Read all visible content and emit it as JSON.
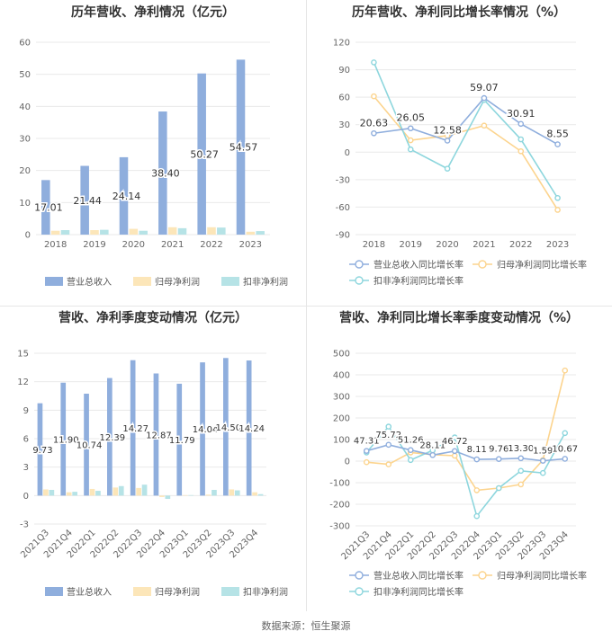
{
  "source_label": "数据来源：恒生聚源",
  "colors": {
    "revenue_bar": "#8FAEDD",
    "net_profit_bar": "#FCE6B9",
    "deducted_profit_bar": "#B6E3E6",
    "revenue_line": "#8FAEDD",
    "net_profit_line": "#FCD48E",
    "deducted_profit_line": "#8DD6DD"
  },
  "chart_data": [
    {
      "type": "bar",
      "title": "历年营收、净利情况（亿元）",
      "categories": [
        "2018",
        "2019",
        "2020",
        "2021",
        "2022",
        "2023"
      ],
      "ylim": [
        0,
        60
      ],
      "yticks": [
        0,
        10,
        20,
        30,
        40,
        50,
        60
      ],
      "series": [
        {
          "name": "营业总收入",
          "values": [
            17.01,
            21.44,
            24.14,
            38.4,
            50.27,
            54.57
          ],
          "labels": [
            "17.01",
            "21.44",
            "24.14",
            "38.40",
            "50.27",
            "54.57"
          ]
        },
        {
          "name": "归母净利润",
          "values": [
            1.2,
            1.4,
            1.8,
            2.3,
            2.3,
            0.9
          ]
        },
        {
          "name": "扣非净利润",
          "values": [
            1.4,
            1.5,
            1.2,
            2.0,
            2.2,
            1.1
          ]
        }
      ],
      "legend": "bottom"
    },
    {
      "type": "line",
      "title": "历年营收、净利同比增长率情况（%）",
      "categories": [
        "2018",
        "2019",
        "2020",
        "2021",
        "2022",
        "2023"
      ],
      "ylim": [
        -90,
        120
      ],
      "yticks": [
        -90,
        -60,
        -30,
        0,
        30,
        60,
        90,
        120
      ],
      "series": [
        {
          "name": "营业总收入同比增长率",
          "values": [
            20.63,
            26.05,
            12.58,
            59.07,
            30.91,
            8.55
          ],
          "labels": [
            "20.63",
            "26.05",
            "12.58",
            "59.07",
            "30.91",
            "8.55"
          ]
        },
        {
          "name": "归母净利润同比增长率",
          "values": [
            61,
            13,
            18,
            29,
            1,
            -63
          ]
        },
        {
          "name": "扣非净利润同比增长率",
          "values": [
            98,
            3,
            -18,
            57,
            14,
            -50
          ]
        }
      ],
      "legend": "bottom"
    },
    {
      "type": "bar",
      "title": "营收、净利季度变动情况（亿元）",
      "categories": [
        "2021Q3",
        "2021Q4",
        "2022Q1",
        "2022Q2",
        "2022Q3",
        "2022Q4",
        "2023Q1",
        "2023Q2",
        "2023Q3",
        "2023Q4"
      ],
      "ylim": [
        -3,
        15
      ],
      "yticks": [
        -3,
        0,
        3,
        6,
        9,
        12,
        15
      ],
      "series": [
        {
          "name": "营业总收入",
          "values": [
            9.73,
            11.9,
            10.74,
            12.39,
            14.27,
            12.87,
            11.79,
            14.04,
            14.5,
            14.24
          ],
          "labels": [
            "9.73",
            "11.90",
            "10.74",
            "12.39",
            "14.27",
            "12.87",
            "11.79",
            "14.04",
            "14.50",
            "14.24"
          ]
        },
        {
          "name": "归母净利润",
          "values": [
            0.65,
            0.35,
            0.7,
            0.85,
            0.8,
            -0.15,
            0.05,
            0.1,
            0.65,
            0.35
          ]
        },
        {
          "name": "扣非净利润",
          "values": [
            0.6,
            0.4,
            0.5,
            1.0,
            1.15,
            -0.35,
            0.05,
            0.6,
            0.55,
            0.15
          ]
        }
      ],
      "legend": "bottom"
    },
    {
      "type": "line",
      "title": "营收、净利同比增长率季度变动情况（%）",
      "categories": [
        "2021Q3",
        "2021Q4",
        "2022Q1",
        "2022Q2",
        "2022Q3",
        "2022Q4",
        "2023Q1",
        "2023Q2",
        "2023Q3",
        "2023Q4"
      ],
      "ylim": [
        -300,
        500
      ],
      "yticks": [
        -300,
        -200,
        -100,
        0,
        100,
        200,
        300,
        400,
        500
      ],
      "series": [
        {
          "name": "营业总收入同比增长率",
          "values": [
            47.31,
            75.72,
            51.26,
            28.11,
            46.72,
            8.11,
            9.76,
            13.3,
            1.59,
            10.67
          ],
          "labels": [
            "47.31",
            "75.72",
            "51.26",
            "28.11",
            "46.72",
            "8.11",
            "9.76",
            "13.30",
            "1.59",
            "10.67"
          ]
        },
        {
          "name": "归母净利润同比增长率",
          "values": [
            -5,
            -15,
            40,
            30,
            25,
            -135,
            -125,
            -108,
            5,
            420
          ]
        },
        {
          "name": "扣非净利润同比增长率",
          "values": [
            40,
            160,
            5,
            50,
            110,
            -255,
            -125,
            -45,
            -55,
            130
          ]
        }
      ],
      "legend": "bottom"
    }
  ]
}
